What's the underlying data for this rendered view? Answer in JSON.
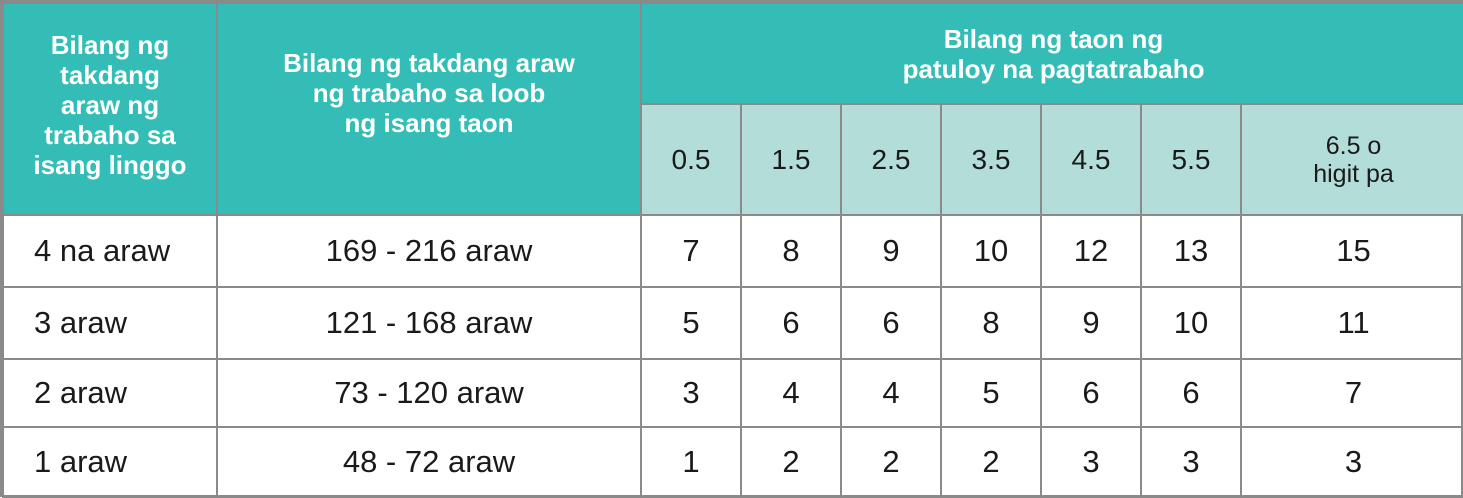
{
  "table": {
    "header": {
      "col1": "Bilang ng\ntakdang\naraw ng\ntrabaho sa\nisang linggo",
      "col2": "Bilang ng takdang araw\nng trabaho sa loob\nng isang taon",
      "group": "Bilang ng taon ng\npatuloy na pagtatrabaho",
      "years": [
        "0.5",
        "1.5",
        "2.5",
        "3.5",
        "4.5",
        "5.5",
        "6.5 o\nhigit pa"
      ]
    },
    "rows": [
      {
        "days_week": "4 na araw",
        "days_year": "169 - 216 araw",
        "values": [
          "7",
          "8",
          "9",
          "10",
          "12",
          "13",
          "15"
        ]
      },
      {
        "days_week": "3 araw",
        "days_year": "121 - 168 araw",
        "values": [
          "5",
          "6",
          "6",
          "8",
          "9",
          "10",
          "11"
        ]
      },
      {
        "days_week": "2 araw",
        "days_year": "73 - 120 araw",
        "values": [
          "3",
          "4",
          "4",
          "5",
          "6",
          "6",
          "7"
        ]
      },
      {
        "days_week": "1 araw",
        "days_year": "48 - 72 araw",
        "values": [
          "1",
          "2",
          "2",
          "2",
          "3",
          "3",
          "3"
        ]
      }
    ]
  },
  "colors": {
    "header_teal": "#34bdb7",
    "subheader_light_teal": "#b2ddd9",
    "border_gray": "#8a8a8a"
  }
}
